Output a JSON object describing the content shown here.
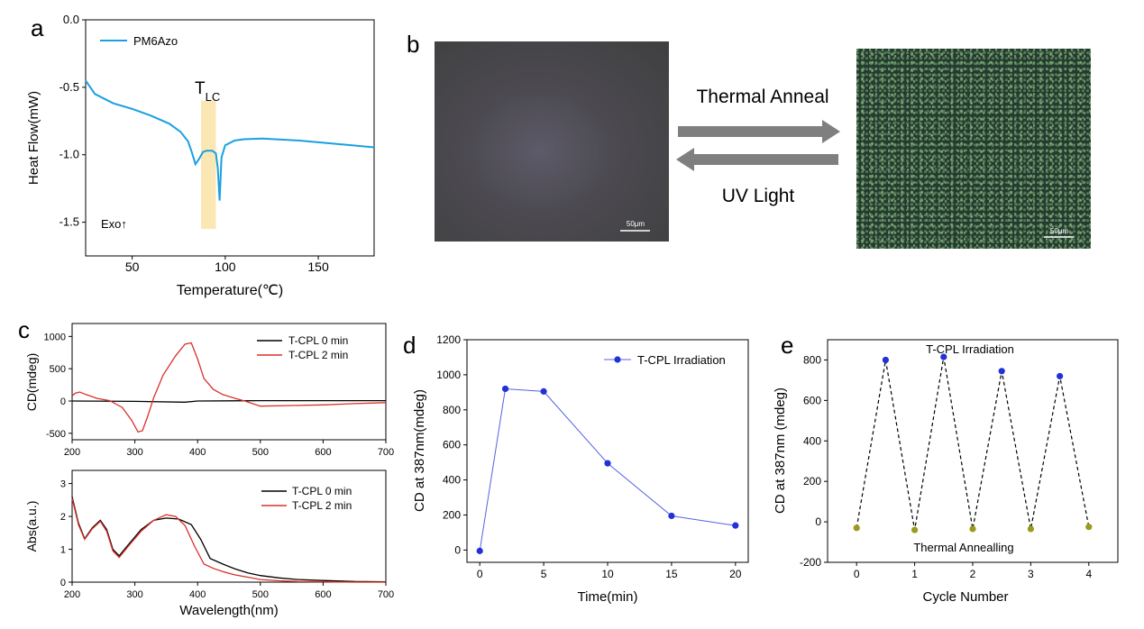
{
  "panels": {
    "a": "a",
    "b": "b",
    "c": "c",
    "d": "d",
    "e": "e"
  },
  "panel_b": {
    "forward_label": "Thermal Anneal",
    "reverse_label": "UV Light",
    "left_scale_bar": "50μm",
    "right_scale_bar": "50μm"
  },
  "colors": {
    "dsc_line": "#1aa0e0",
    "tlc_band": "#fbe7b4",
    "cd_0min": "#000000",
    "cd_2min": "#d9302a",
    "marker_blue": "#2230d8",
    "marker_olive": "#9a9a1c",
    "line_d": "#5560e0"
  },
  "chart_data": [
    {
      "id": "a",
      "type": "line",
      "xlabel": "Temperature(℃)",
      "ylabel": "Heat Flow(mW)",
      "xlim": [
        25,
        180
      ],
      "ylim": [
        -1.75,
        0.0
      ],
      "xticks": [
        50,
        100,
        150
      ],
      "yticks": [
        "0.0",
        "-0.5",
        "-1.0",
        "-1.5"
      ],
      "annotations": {
        "band": "T",
        "band_sub": "LC",
        "band_range": [
          87,
          95
        ],
        "corner_text": "Exo↑"
      },
      "series": [
        {
          "name": "PM6Azo",
          "x": [
            25,
            30,
            40,
            50,
            60,
            70,
            76,
            80,
            82,
            84,
            86,
            88,
            90,
            93,
            95,
            96,
            97,
            98,
            100,
            105,
            110,
            120,
            140,
            160,
            180
          ],
          "y": [
            -0.45,
            -0.55,
            -0.62,
            -0.66,
            -0.71,
            -0.77,
            -0.83,
            -0.9,
            -0.98,
            -1.07,
            -1.03,
            -0.98,
            -0.97,
            -0.97,
            -0.99,
            -1.1,
            -1.34,
            -1.02,
            -0.93,
            -0.895,
            -0.885,
            -0.88,
            -0.895,
            -0.92,
            -0.945
          ]
        }
      ]
    },
    {
      "id": "c-top",
      "type": "line",
      "ylabel": "CD(mdeg)",
      "xlim": [
        200,
        700
      ],
      "ylim": [
        -600,
        1200
      ],
      "xticks": [
        "200",
        "300",
        "400",
        "500",
        "600",
        "700"
      ],
      "yticks": [
        "1000",
        "500",
        "0",
        "-500"
      ],
      "series": [
        {
          "name": "T-CPL 0 min",
          "x": [
            200,
            300,
            380,
            400,
            500,
            600,
            700
          ],
          "y": [
            0,
            -5,
            -18,
            0,
            5,
            5,
            5
          ]
        },
        {
          "name": "T-CPL 2 min",
          "x": [
            200,
            205,
            212,
            222,
            240,
            260,
            280,
            295,
            305,
            312,
            320,
            330,
            345,
            365,
            380,
            390,
            400,
            410,
            425,
            440,
            460,
            475,
            500,
            550,
            600,
            650,
            700
          ],
          "y": [
            80,
            120,
            140,
            100,
            40,
            5,
            -100,
            -300,
            -480,
            -460,
            -250,
            50,
            400,
            700,
            880,
            900,
            650,
            350,
            180,
            100,
            40,
            0,
            -80,
            -70,
            -60,
            -40,
            -25
          ]
        }
      ]
    },
    {
      "id": "c-bottom",
      "type": "line",
      "xlabel": "Wavelength(nm)",
      "ylabel": "Abs(a.u.)",
      "xlim": [
        200,
        700
      ],
      "ylim": [
        0,
        3.4
      ],
      "xticks": [
        "200",
        "300",
        "400",
        "500",
        "600",
        "700"
      ],
      "yticks": [
        "3",
        "2",
        "1",
        "0"
      ],
      "series": [
        {
          "name": "T-CPL 0 min",
          "x": [
            200,
            210,
            220,
            232,
            245,
            255,
            265,
            275,
            290,
            310,
            330,
            350,
            370,
            390,
            405,
            420,
            440,
            460,
            480,
            500,
            530,
            560,
            600,
            650,
            700
          ],
          "y": [
            2.6,
            1.8,
            1.32,
            1.65,
            1.88,
            1.6,
            1.0,
            0.8,
            1.15,
            1.6,
            1.88,
            1.95,
            1.92,
            1.75,
            1.3,
            0.72,
            0.55,
            0.4,
            0.28,
            0.2,
            0.13,
            0.08,
            0.05,
            0.02,
            0.01
          ]
        },
        {
          "name": "T-CPL 2 min",
          "x": [
            200,
            210,
            220,
            232,
            245,
            255,
            265,
            275,
            290,
            310,
            330,
            350,
            365,
            380,
            395,
            410,
            425,
            440,
            460,
            480,
            500,
            530,
            560,
            600,
            650,
            700
          ],
          "y": [
            2.55,
            1.75,
            1.3,
            1.62,
            1.85,
            1.55,
            0.95,
            0.75,
            1.1,
            1.55,
            1.88,
            2.05,
            2.0,
            1.72,
            1.1,
            0.55,
            0.42,
            0.32,
            0.22,
            0.15,
            0.08,
            0.04,
            0.02,
            0.01,
            0.0,
            0.0
          ]
        }
      ]
    },
    {
      "id": "d",
      "type": "line",
      "xlabel": "Time(min)",
      "ylabel": "CD at 387nm(mdeg)",
      "xlim": [
        -1,
        21
      ],
      "ylim": [
        -70,
        1200
      ],
      "xticks": [
        "0",
        "5",
        "10",
        "15",
        "20"
      ],
      "yticks": [
        "1200",
        "1000",
        "800",
        "600",
        "400",
        "200",
        "0"
      ],
      "series": [
        {
          "name": "T-CPL Irradiation",
          "x": [
            0,
            2,
            5,
            10,
            15,
            20
          ],
          "y": [
            -5,
            920,
            905,
            495,
            195,
            140
          ]
        }
      ]
    },
    {
      "id": "e",
      "type": "line",
      "xlabel": "Cycle Number",
      "ylabel": "CD at 387nm (mdeg)",
      "xlim": [
        -0.5,
        4.5
      ],
      "ylim": [
        -200,
        900
      ],
      "xticks": [
        "0",
        "1",
        "2",
        "3",
        "4"
      ],
      "yticks": [
        "800",
        "600",
        "400",
        "200",
        "0",
        "-200"
      ],
      "annotations": {
        "top": "T-CPL Irradiation",
        "bottom": "Thermal Annealling"
      },
      "series": [
        {
          "name": "T-CPL Irradiation",
          "x": [
            0.5,
            1.5,
            2.5,
            3.5
          ],
          "y": [
            800,
            815,
            745,
            720
          ]
        },
        {
          "name": "Thermal Annealling",
          "x": [
            0,
            1,
            2,
            3,
            4
          ],
          "y": [
            -30,
            -40,
            -35,
            -35,
            -25
          ]
        }
      ]
    }
  ]
}
